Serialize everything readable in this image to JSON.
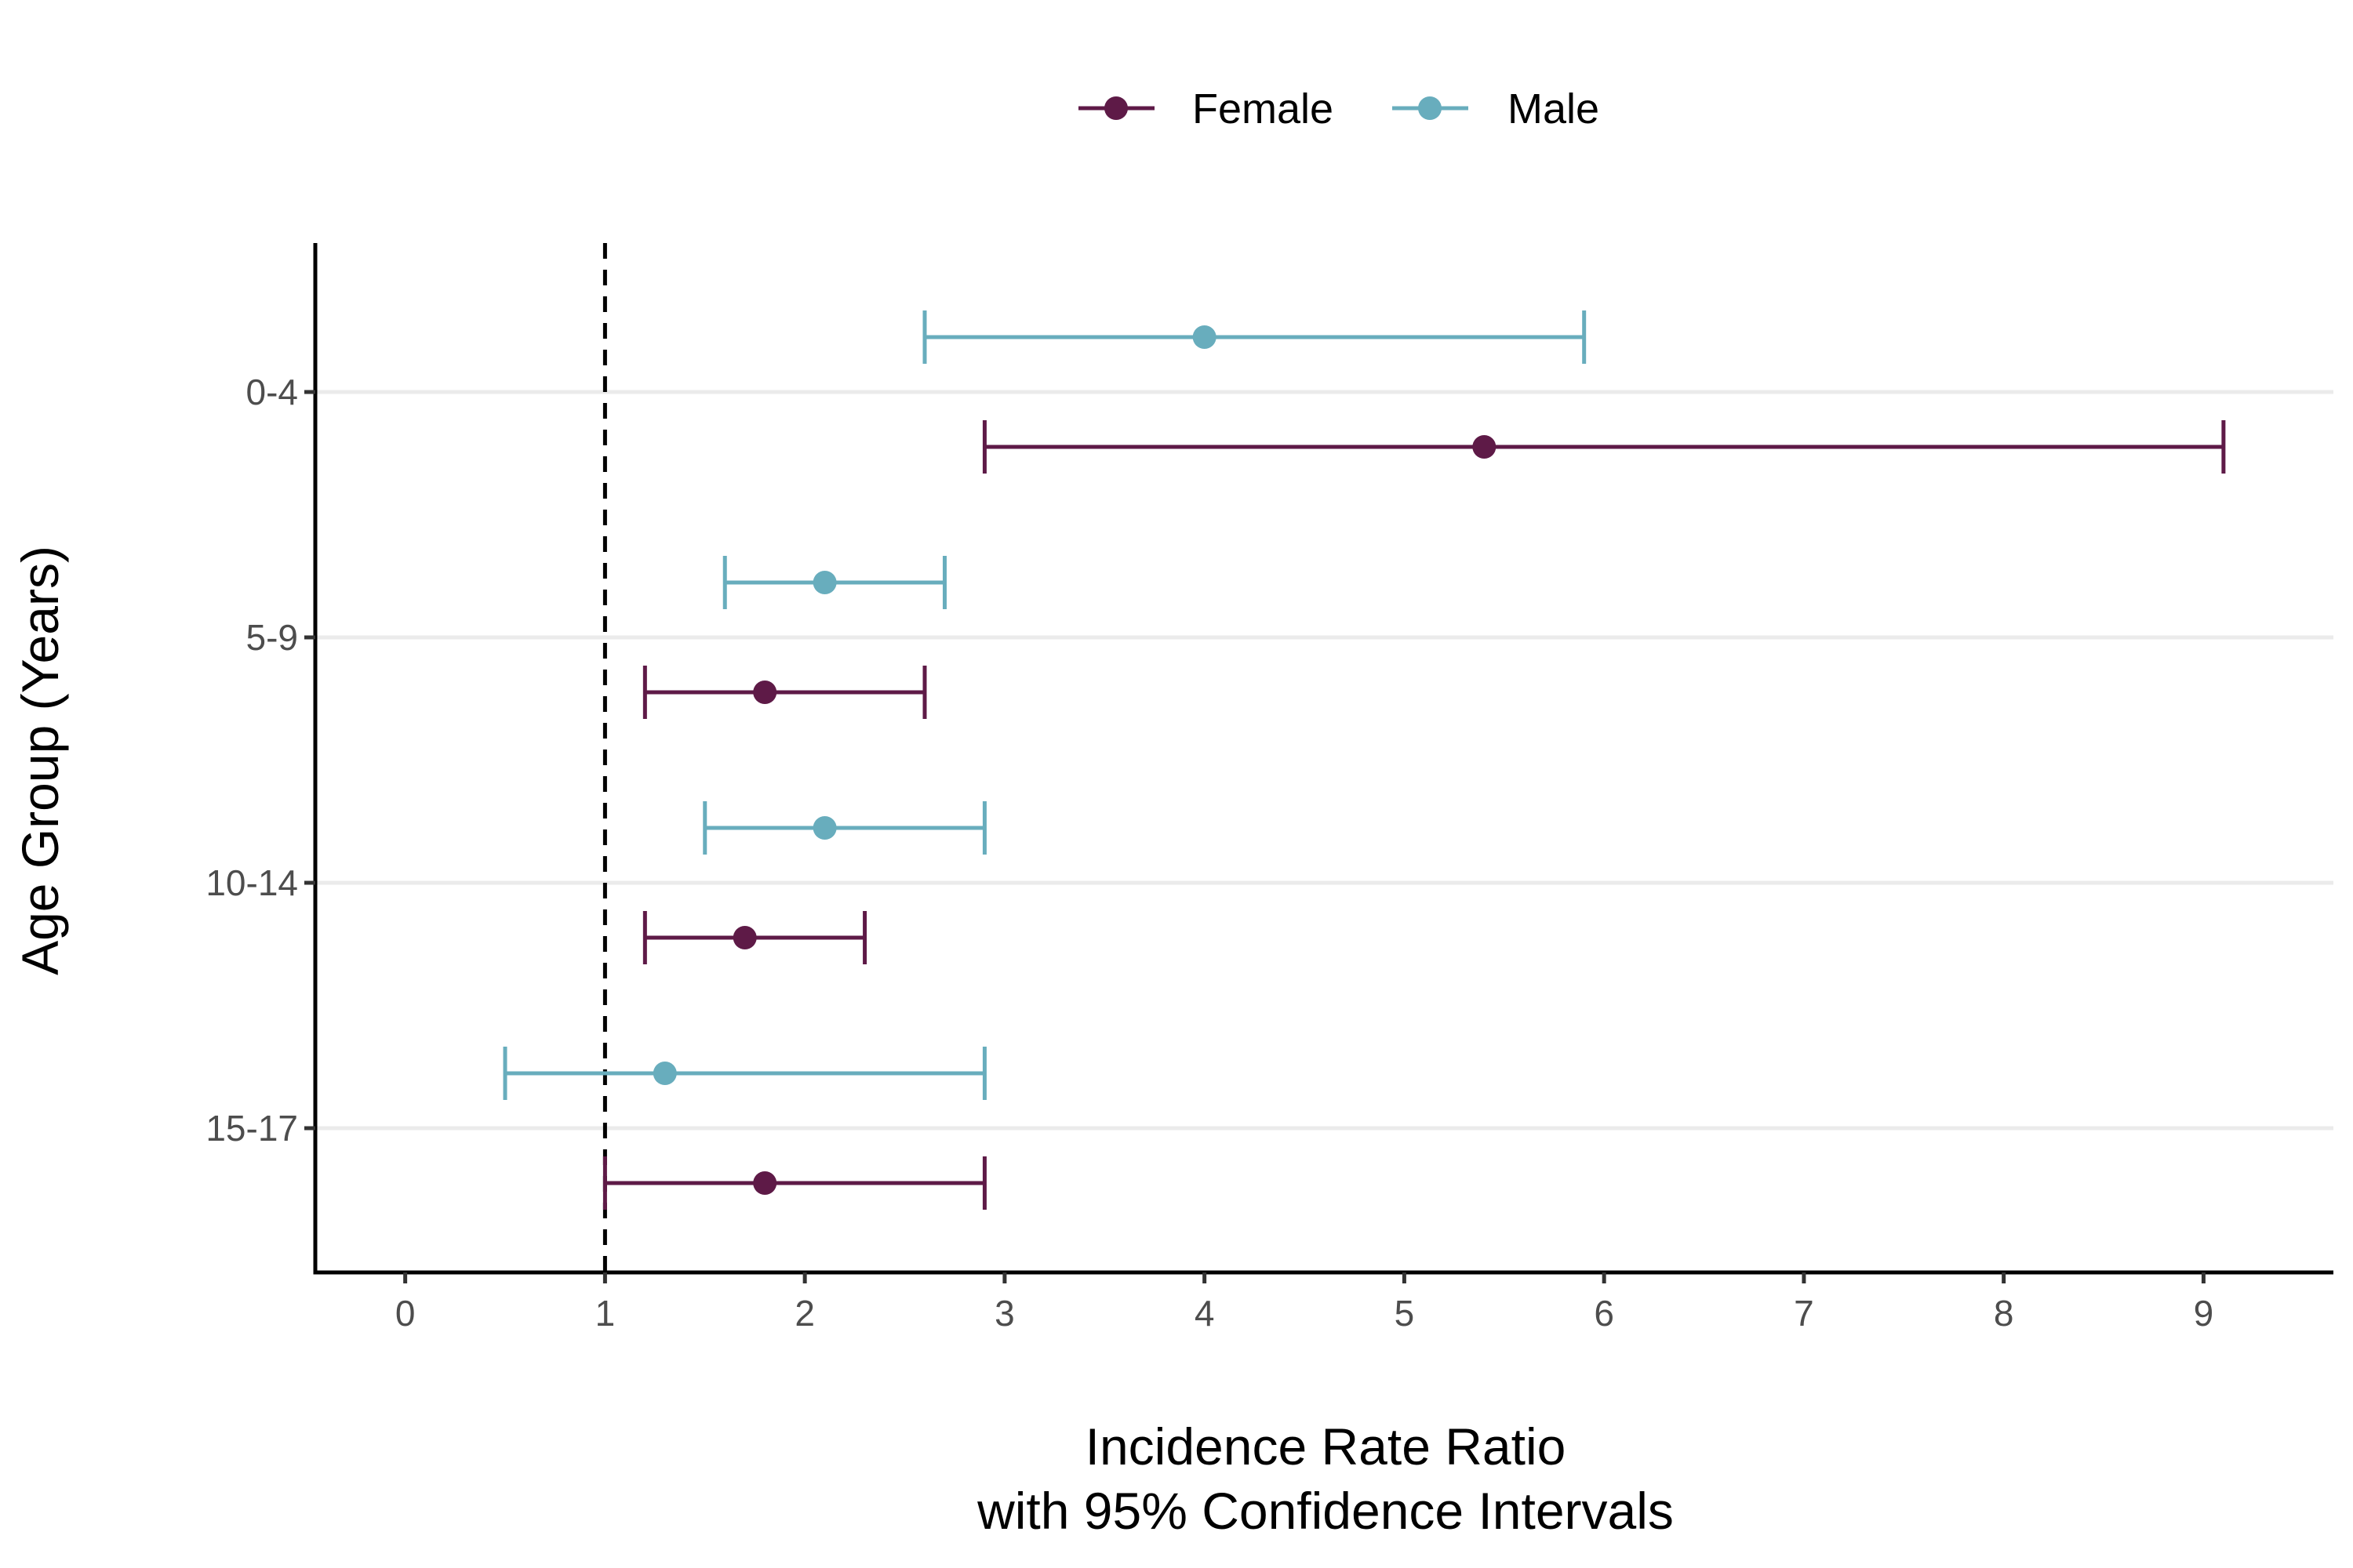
{
  "chart_data": {
    "type": "forest",
    "xlabel": "Incidence Rate Ratio",
    "xlabel_line2": "with 95% Confidence Intervals",
    "ylabel": "Age Group (Years)",
    "categories": [
      "0-4",
      "5-9",
      "10-14",
      "15-17"
    ],
    "x_ticks": [
      0,
      1,
      2,
      3,
      4,
      5,
      6,
      7,
      8,
      9
    ],
    "xlim": [
      -0.45,
      9.65
    ],
    "reference_line": 1,
    "legend_position": "top",
    "grid": "horizontal major gridlines at each category",
    "series": [
      {
        "name": "Female",
        "color": "#5e1a47",
        "estimates": [
          5.4,
          1.8,
          1.7,
          1.8
        ],
        "lower": [
          2.9,
          1.2,
          1.2,
          1.0
        ],
        "upper": [
          9.1,
          2.6,
          2.3,
          2.9
        ]
      },
      {
        "name": "Male",
        "color": "#68adbd",
        "estimates": [
          4.0,
          2.1,
          2.1,
          1.3
        ],
        "lower": [
          2.6,
          1.6,
          1.5,
          0.5
        ],
        "upper": [
          5.9,
          2.7,
          2.9,
          2.9
        ]
      }
    ]
  }
}
